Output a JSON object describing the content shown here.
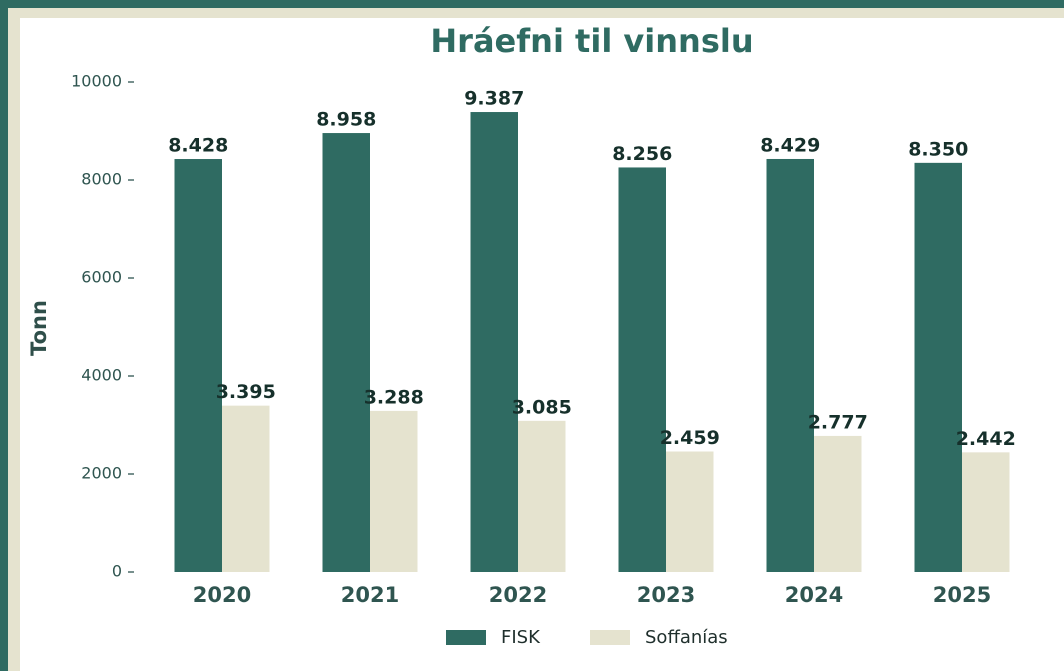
{
  "chart_data": {
    "type": "bar",
    "title": "Hráefni til vinnslu",
    "y_label": "Tonn",
    "categories": [
      "2020",
      "2021",
      "2022",
      "2023",
      "2024",
      "2025"
    ],
    "series": [
      {
        "name": "FISK",
        "color": "#2f6b62",
        "values": [
          8428,
          8958,
          9387,
          8256,
          8429,
          8350
        ],
        "value_labels": [
          "8.428",
          "8.958",
          "9.387",
          "8.256",
          "8.429",
          "8.350"
        ]
      },
      {
        "name": "Soffanías",
        "color": "#e5e3cf",
        "values": [
          3395,
          3288,
          3085,
          2459,
          2777,
          2442
        ],
        "value_labels": [
          "3.395",
          "3.288",
          "3.085",
          "2.459",
          "2.777",
          "2.442"
        ]
      }
    ],
    "ylim": [
      0,
      10000
    ],
    "yticks": [
      0,
      2000,
      4000,
      6000,
      8000,
      10000
    ],
    "legend": "bottom"
  }
}
